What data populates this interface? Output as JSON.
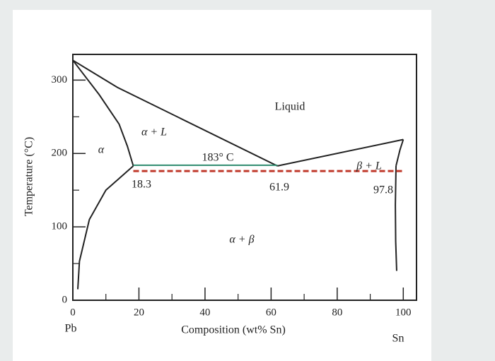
{
  "chart_data": {
    "type": "line",
    "y_label": "Temperature (°C)",
    "x_label": "Composition (wt% Sn)",
    "xlim": [
      0,
      104
    ],
    "ylim": [
      0,
      335
    ],
    "xticks": [
      0,
      20,
      40,
      60,
      80,
      100
    ],
    "yticks": [
      0,
      100,
      200,
      300
    ],
    "xminorticks": [
      10,
      30,
      50,
      70,
      90
    ],
    "yminorticks": [
      50,
      150,
      250
    ],
    "series": [
      {
        "color": "#222222",
        "style": "solid",
        "x": [
          0,
          13.5,
          61.9
        ],
        "values": [
          327,
          290,
          183
        ]
      },
      {
        "color": "#222222",
        "style": "solid",
        "x": [
          61.9,
          100
        ],
        "values": [
          183,
          219
        ]
      },
      {
        "color": "#222222",
        "style": "solid",
        "x": [
          0,
          8,
          14,
          16.5,
          18.3
        ],
        "values": [
          327,
          280,
          240,
          210,
          183
        ]
      },
      {
        "color": "#222222",
        "style": "solid",
        "x": [
          18.3,
          10,
          5,
          2,
          1.5
        ],
        "values": [
          183,
          150,
          110,
          53,
          15
        ]
      },
      {
        "color": "#222222",
        "style": "solid",
        "x": [
          97.8,
          99,
          100
        ],
        "values": [
          183,
          205,
          219
        ]
      },
      {
        "color": "#222222",
        "style": "solid",
        "x": [
          97.8,
          97.6,
          97.7,
          98
        ],
        "values": [
          183,
          130,
          80,
          40
        ]
      },
      {
        "color": "#2e8b6e",
        "style": "solid",
        "x": [
          18.3,
          61.9
        ],
        "values": [
          184,
          184
        ]
      },
      {
        "color": "#c0392b",
        "style": "dashed",
        "x": [
          18.3,
          100
        ],
        "values": [
          176,
          176
        ]
      }
    ],
    "annotations": [
      "Liquid",
      "α + L",
      "α",
      "183° C",
      "18.3",
      "61.9",
      "β + L",
      "97.8",
      "α + β",
      "Pb",
      "Sn"
    ]
  }
}
